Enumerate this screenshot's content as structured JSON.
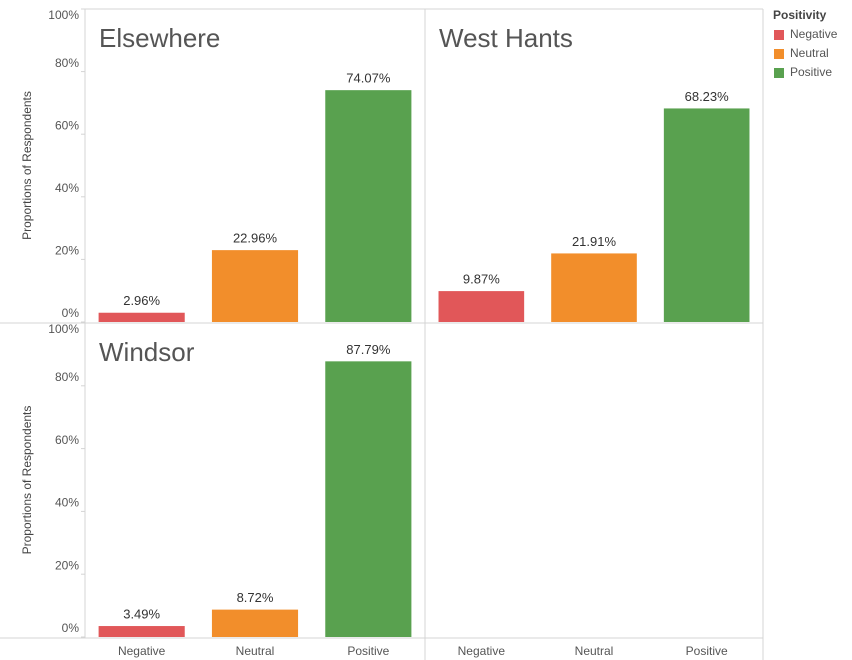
{
  "chart_data": [
    {
      "type": "bar",
      "title": "Elsewhere",
      "ylabel": "Proportions of Respondents",
      "values": [
        2.96,
        22.96,
        74.07
      ],
      "value_labels": [
        "2.96%",
        "22.96%",
        "74.07%"
      ],
      "ylim": [
        0,
        100
      ],
      "yticks": [
        {
          "value": 0,
          "label": "0%"
        },
        {
          "value": 20,
          "label": "20%"
        },
        {
          "value": 40,
          "label": "40%"
        },
        {
          "value": 60,
          "label": "60%"
        },
        {
          "value": 80,
          "label": "80%"
        },
        {
          "value": 100,
          "label": "100%"
        }
      ]
    },
    {
      "type": "bar",
      "title": "West Hants",
      "categories": [
        "Negative",
        "Neutral",
        "Positive"
      ],
      "values": [
        9.87,
        21.91,
        68.23
      ],
      "value_labels": [
        "9.87%",
        "21.91%",
        "68.23%"
      ],
      "ylim": [
        0,
        100
      ]
    },
    {
      "type": "bar",
      "title": "Windsor",
      "ylabel": "Proportions of Respondents",
      "categories": [
        "Negative",
        "Neutral",
        "Positive"
      ],
      "values": [
        3.49,
        8.72,
        87.79
      ],
      "value_labels": [
        "3.49%",
        "8.72%",
        "87.79%"
      ],
      "ylim": [
        0,
        100
      ],
      "yticks": [
        {
          "value": 0,
          "label": "0%"
        },
        {
          "value": 20,
          "label": "20%"
        },
        {
          "value": 40,
          "label": "40%"
        },
        {
          "value": 60,
          "label": "60%"
        },
        {
          "value": 80,
          "label": "80%"
        },
        {
          "value": 100,
          "label": "100%"
        }
      ]
    }
  ],
  "legend": {
    "title": "Positivity",
    "items": [
      {
        "name": "Negative",
        "color": "#e15759"
      },
      {
        "name": "Neutral",
        "color": "#f28e2b"
      },
      {
        "name": "Positive",
        "color": "#59a14f"
      }
    ]
  }
}
